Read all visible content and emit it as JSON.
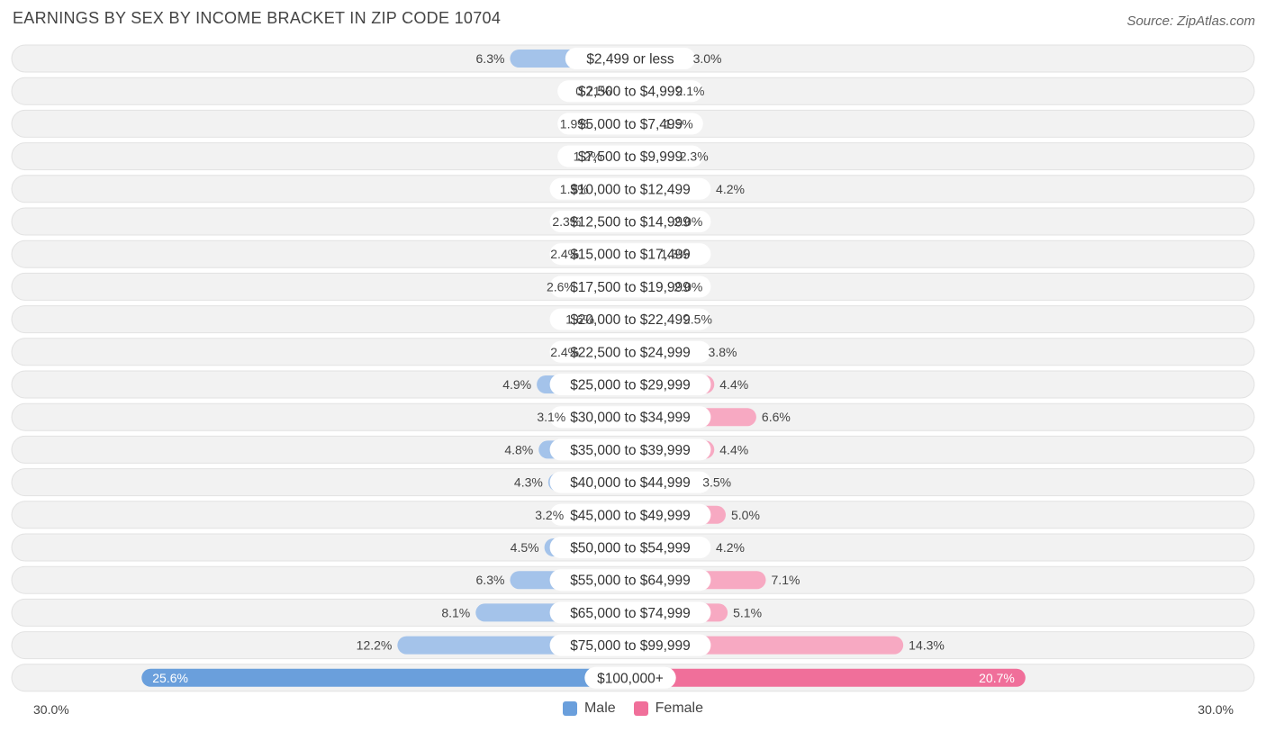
{
  "header": {
    "title": "EARNINGS BY SEX BY INCOME BRACKET IN ZIP CODE 10704",
    "source": "Source: ZipAtlas.com"
  },
  "axis": {
    "left_label": "30.0%",
    "right_label": "30.0%"
  },
  "legend": {
    "male": "Male",
    "female": "Female"
  },
  "colors": {
    "male": "#a4c3ea",
    "male_strong": "#6a9fdc",
    "female": "#f7a9c2",
    "female_strong": "#f06f9a",
    "row_bg": "#f2f2f2",
    "row_border": "#e2e2e2"
  },
  "chart_data": {
    "type": "bar",
    "title": "EARNINGS BY SEX BY INCOME BRACKET IN ZIP CODE 10704",
    "orientation": "horizontal-diverging",
    "xlim": [
      -30,
      30
    ],
    "categories": [
      "$2,499 or less",
      "$2,500 to $4,999",
      "$5,000 to $7,499",
      "$7,500 to $9,999",
      "$10,000 to $12,499",
      "$12,500 to $14,999",
      "$15,000 to $17,499",
      "$17,500 to $19,999",
      "$20,000 to $22,499",
      "$22,500 to $24,999",
      "$25,000 to $29,999",
      "$30,000 to $34,999",
      "$35,000 to $39,999",
      "$40,000 to $44,999",
      "$45,000 to $49,999",
      "$50,000 to $54,999",
      "$55,000 to $64,999",
      "$65,000 to $74,999",
      "$75,000 to $99,999",
      "$100,000+"
    ],
    "series": [
      {
        "name": "Male",
        "values": [
          6.3,
          0.71,
          1.9,
          1.2,
          1.9,
          2.3,
          2.4,
          2.6,
          1.6,
          2.4,
          4.9,
          3.1,
          4.8,
          4.3,
          3.2,
          4.5,
          6.3,
          8.1,
          12.2,
          25.6
        ],
        "labels": [
          "6.3%",
          "0.71%",
          "1.9%",
          "1.2%",
          "1.9%",
          "2.3%",
          "2.4%",
          "2.6%",
          "1.6%",
          "2.4%",
          "4.9%",
          "3.1%",
          "4.8%",
          "4.3%",
          "3.2%",
          "4.5%",
          "6.3%",
          "8.1%",
          "12.2%",
          "25.6%"
        ]
      },
      {
        "name": "Female",
        "values": [
          3.0,
          2.1,
          1.5,
          2.3,
          4.2,
          2.0,
          1.3,
          2.0,
          2.5,
          3.8,
          4.4,
          6.6,
          4.4,
          3.5,
          5.0,
          4.2,
          7.1,
          5.1,
          14.3,
          20.7
        ],
        "labels": [
          "3.0%",
          "2.1%",
          "1.5%",
          "2.3%",
          "4.2%",
          "2.0%",
          "1.3%",
          "2.0%",
          "2.5%",
          "3.8%",
          "4.4%",
          "6.6%",
          "4.4%",
          "3.5%",
          "5.0%",
          "4.2%",
          "7.1%",
          "5.1%",
          "14.3%",
          "20.7%"
        ]
      }
    ]
  }
}
